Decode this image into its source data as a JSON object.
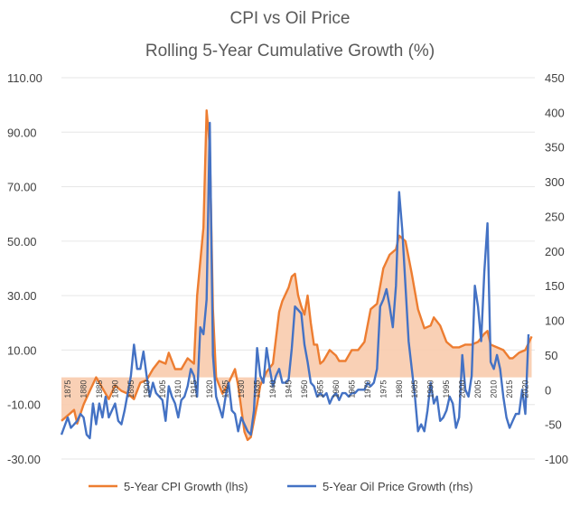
{
  "chart_data": {
    "type": "line",
    "title": "CPI vs Oil Price",
    "subtitle": "Rolling 5-Year Cumulative Growth (%)",
    "y_left": {
      "min": -30,
      "max": 110,
      "ticks": [
        "110.00",
        "90.00",
        "70.00",
        "50.00",
        "30.00",
        "10.00",
        "-10.00",
        "-30.00"
      ]
    },
    "y_right": {
      "min": -100,
      "max": 450,
      "ticks": [
        "450",
        "400",
        "350",
        "300",
        "250",
        "200",
        "150",
        "100",
        "50",
        "0",
        "-50",
        "-100"
      ]
    },
    "x_ticks": [
      "1875",
      "1880",
      "1885",
      "1890",
      "1895",
      "1900",
      "1905",
      "1910",
      "1915",
      "1920",
      "1925",
      "1930",
      "1935",
      "1940",
      "1945",
      "1950",
      "1955",
      "1960",
      "1965",
      "1970",
      "1975",
      "1980",
      "1985",
      "1990",
      "1995",
      "2000",
      "2005",
      "2010",
      "2015",
      "2020"
    ],
    "x_range": [
      1873,
      2023
    ],
    "series": [
      {
        "name": "5-Year CPI Growth (lhs)",
        "axis": "left",
        "color": "#ED7D31",
        "fill": "#F8CBAD",
        "points": [
          [
            1873,
            -16
          ],
          [
            1875,
            -14
          ],
          [
            1877,
            -12
          ],
          [
            1878,
            -17
          ],
          [
            1880,
            -10
          ],
          [
            1882,
            -5
          ],
          [
            1884,
            0
          ],
          [
            1886,
            -4
          ],
          [
            1888,
            -8
          ],
          [
            1890,
            -3
          ],
          [
            1892,
            -5
          ],
          [
            1894,
            -6
          ],
          [
            1896,
            -8
          ],
          [
            1898,
            -2
          ],
          [
            1900,
            -1
          ],
          [
            1902,
            3
          ],
          [
            1904,
            6
          ],
          [
            1906,
            5
          ],
          [
            1907,
            9
          ],
          [
            1909,
            3
          ],
          [
            1911,
            3
          ],
          [
            1913,
            7
          ],
          [
            1915,
            5
          ],
          [
            1916,
            30
          ],
          [
            1918,
            55
          ],
          [
            1919,
            98
          ],
          [
            1920,
            85
          ],
          [
            1921,
            25
          ],
          [
            1922,
            0
          ],
          [
            1924,
            -6
          ],
          [
            1926,
            -2
          ],
          [
            1928,
            3
          ],
          [
            1929,
            -3
          ],
          [
            1931,
            -20
          ],
          [
            1932,
            -23
          ],
          [
            1933,
            -22
          ],
          [
            1935,
            -10
          ],
          [
            1936,
            -3
          ],
          [
            1938,
            2
          ],
          [
            1940,
            5
          ],
          [
            1942,
            24
          ],
          [
            1943,
            28
          ],
          [
            1945,
            33
          ],
          [
            1946,
            37
          ],
          [
            1947,
            38
          ],
          [
            1948,
            30
          ],
          [
            1949,
            26
          ],
          [
            1950,
            23
          ],
          [
            1951,
            30
          ],
          [
            1952,
            20
          ],
          [
            1953,
            12
          ],
          [
            1954,
            12
          ],
          [
            1955,
            5
          ],
          [
            1956,
            6
          ],
          [
            1957,
            8
          ],
          [
            1958,
            10
          ],
          [
            1960,
            8
          ],
          [
            1961,
            6
          ],
          [
            1963,
            6
          ],
          [
            1965,
            10
          ],
          [
            1967,
            10
          ],
          [
            1969,
            13
          ],
          [
            1971,
            25
          ],
          [
            1973,
            27
          ],
          [
            1975,
            40
          ],
          [
            1977,
            45
          ],
          [
            1979,
            47
          ],
          [
            1980,
            52
          ],
          [
            1982,
            50
          ],
          [
            1984,
            38
          ],
          [
            1986,
            25
          ],
          [
            1988,
            18
          ],
          [
            1990,
            19
          ],
          [
            1991,
            22
          ],
          [
            1993,
            19
          ],
          [
            1995,
            13
          ],
          [
            1997,
            11
          ],
          [
            1999,
            11
          ],
          [
            2001,
            12
          ],
          [
            2003,
            12
          ],
          [
            2005,
            13
          ],
          [
            2007,
            16
          ],
          [
            2008,
            17
          ],
          [
            2009,
            12
          ],
          [
            2011,
            11
          ],
          [
            2013,
            10
          ],
          [
            2015,
            7
          ],
          [
            2016,
            7
          ],
          [
            2018,
            9
          ],
          [
            2020,
            10
          ],
          [
            2022,
            15
          ]
        ]
      },
      {
        "name": "5-Year Oil Price Growth (rhs)",
        "axis": "right",
        "color": "#4472C4",
        "points": [
          [
            1873,
            -65
          ],
          [
            1875,
            -40
          ],
          [
            1876,
            -55
          ],
          [
            1878,
            -45
          ],
          [
            1879,
            -35
          ],
          [
            1880,
            -40
          ],
          [
            1881,
            -65
          ],
          [
            1882,
            -70
          ],
          [
            1883,
            -20
          ],
          [
            1884,
            -50
          ],
          [
            1885,
            -20
          ],
          [
            1886,
            -40
          ],
          [
            1887,
            -10
          ],
          [
            1888,
            -40
          ],
          [
            1889,
            -30
          ],
          [
            1890,
            -20
          ],
          [
            1891,
            -45
          ],
          [
            1892,
            -50
          ],
          [
            1893,
            -30
          ],
          [
            1894,
            -5
          ],
          [
            1895,
            20
          ],
          [
            1896,
            65
          ],
          [
            1897,
            30
          ],
          [
            1898,
            30
          ],
          [
            1899,
            55
          ],
          [
            1900,
            20
          ],
          [
            1901,
            -10
          ],
          [
            1902,
            10
          ],
          [
            1903,
            -5
          ],
          [
            1904,
            -10
          ],
          [
            1905,
            -15
          ],
          [
            1906,
            -45
          ],
          [
            1907,
            5
          ],
          [
            1908,
            -10
          ],
          [
            1909,
            -20
          ],
          [
            1910,
            -40
          ],
          [
            1911,
            -15
          ],
          [
            1912,
            -10
          ],
          [
            1913,
            5
          ],
          [
            1914,
            30
          ],
          [
            1915,
            20
          ],
          [
            1916,
            -10
          ],
          [
            1917,
            90
          ],
          [
            1918,
            80
          ],
          [
            1919,
            130
          ],
          [
            1920,
            385
          ],
          [
            1921,
            50
          ],
          [
            1922,
            -10
          ],
          [
            1923,
            -25
          ],
          [
            1924,
            -40
          ],
          [
            1925,
            -10
          ],
          [
            1926,
            10
          ],
          [
            1927,
            -30
          ],
          [
            1928,
            -35
          ],
          [
            1929,
            -60
          ],
          [
            1930,
            -40
          ],
          [
            1931,
            -50
          ],
          [
            1932,
            -60
          ],
          [
            1933,
            -65
          ],
          [
            1934,
            -30
          ],
          [
            1935,
            60
          ],
          [
            1936,
            20
          ],
          [
            1937,
            10
          ],
          [
            1938,
            60
          ],
          [
            1939,
            30
          ],
          [
            1940,
            5
          ],
          [
            1941,
            20
          ],
          [
            1942,
            30
          ],
          [
            1943,
            10
          ],
          [
            1944,
            10
          ],
          [
            1945,
            15
          ],
          [
            1946,
            60
          ],
          [
            1947,
            120
          ],
          [
            1948,
            115
          ],
          [
            1949,
            110
          ],
          [
            1950,
            65
          ],
          [
            1951,
            40
          ],
          [
            1952,
            10
          ],
          [
            1953,
            5
          ],
          [
            1954,
            -10
          ],
          [
            1955,
            -5
          ],
          [
            1956,
            -10
          ],
          [
            1957,
            -5
          ],
          [
            1958,
            -20
          ],
          [
            1959,
            -10
          ],
          [
            1960,
            -5
          ],
          [
            1961,
            -15
          ],
          [
            1962,
            -5
          ],
          [
            1963,
            -5
          ],
          [
            1964,
            -10
          ],
          [
            1965,
            -5
          ],
          [
            1966,
            -5
          ],
          [
            1967,
            0
          ],
          [
            1968,
            0
          ],
          [
            1969,
            0
          ],
          [
            1970,
            10
          ],
          [
            1971,
            5
          ],
          [
            1972,
            10
          ],
          [
            1973,
            30
          ],
          [
            1974,
            120
          ],
          [
            1975,
            130
          ],
          [
            1976,
            145
          ],
          [
            1977,
            120
          ],
          [
            1978,
            90
          ],
          [
            1979,
            150
          ],
          [
            1980,
            285
          ],
          [
            1981,
            230
          ],
          [
            1982,
            150
          ],
          [
            1983,
            70
          ],
          [
            1984,
            30
          ],
          [
            1985,
            -10
          ],
          [
            1986,
            -60
          ],
          [
            1987,
            -50
          ],
          [
            1988,
            -60
          ],
          [
            1989,
            -30
          ],
          [
            1990,
            10
          ],
          [
            1991,
            -20
          ],
          [
            1992,
            -10
          ],
          [
            1993,
            -45
          ],
          [
            1994,
            -40
          ],
          [
            1995,
            -30
          ],
          [
            1996,
            -10
          ],
          [
            1997,
            -20
          ],
          [
            1998,
            -55
          ],
          [
            1999,
            -40
          ],
          [
            2000,
            50
          ],
          [
            2001,
            0
          ],
          [
            2002,
            -10
          ],
          [
            2003,
            20
          ],
          [
            2004,
            150
          ],
          [
            2005,
            120
          ],
          [
            2006,
            70
          ],
          [
            2007,
            170
          ],
          [
            2008,
            240
          ],
          [
            2009,
            40
          ],
          [
            2010,
            30
          ],
          [
            2011,
            50
          ],
          [
            2012,
            30
          ],
          [
            2013,
            -10
          ],
          [
            2014,
            -40
          ],
          [
            2015,
            -55
          ],
          [
            2016,
            -45
          ],
          [
            2017,
            -35
          ],
          [
            2018,
            -35
          ],
          [
            2019,
            0
          ],
          [
            2020,
            -35
          ],
          [
            2021,
            80
          ]
        ]
      }
    ],
    "legend": {
      "position": "bottom",
      "items": [
        "5-Year CPI Growth (lhs)",
        "5-Year Oil Price Growth (rhs)"
      ]
    },
    "grid": true
  }
}
